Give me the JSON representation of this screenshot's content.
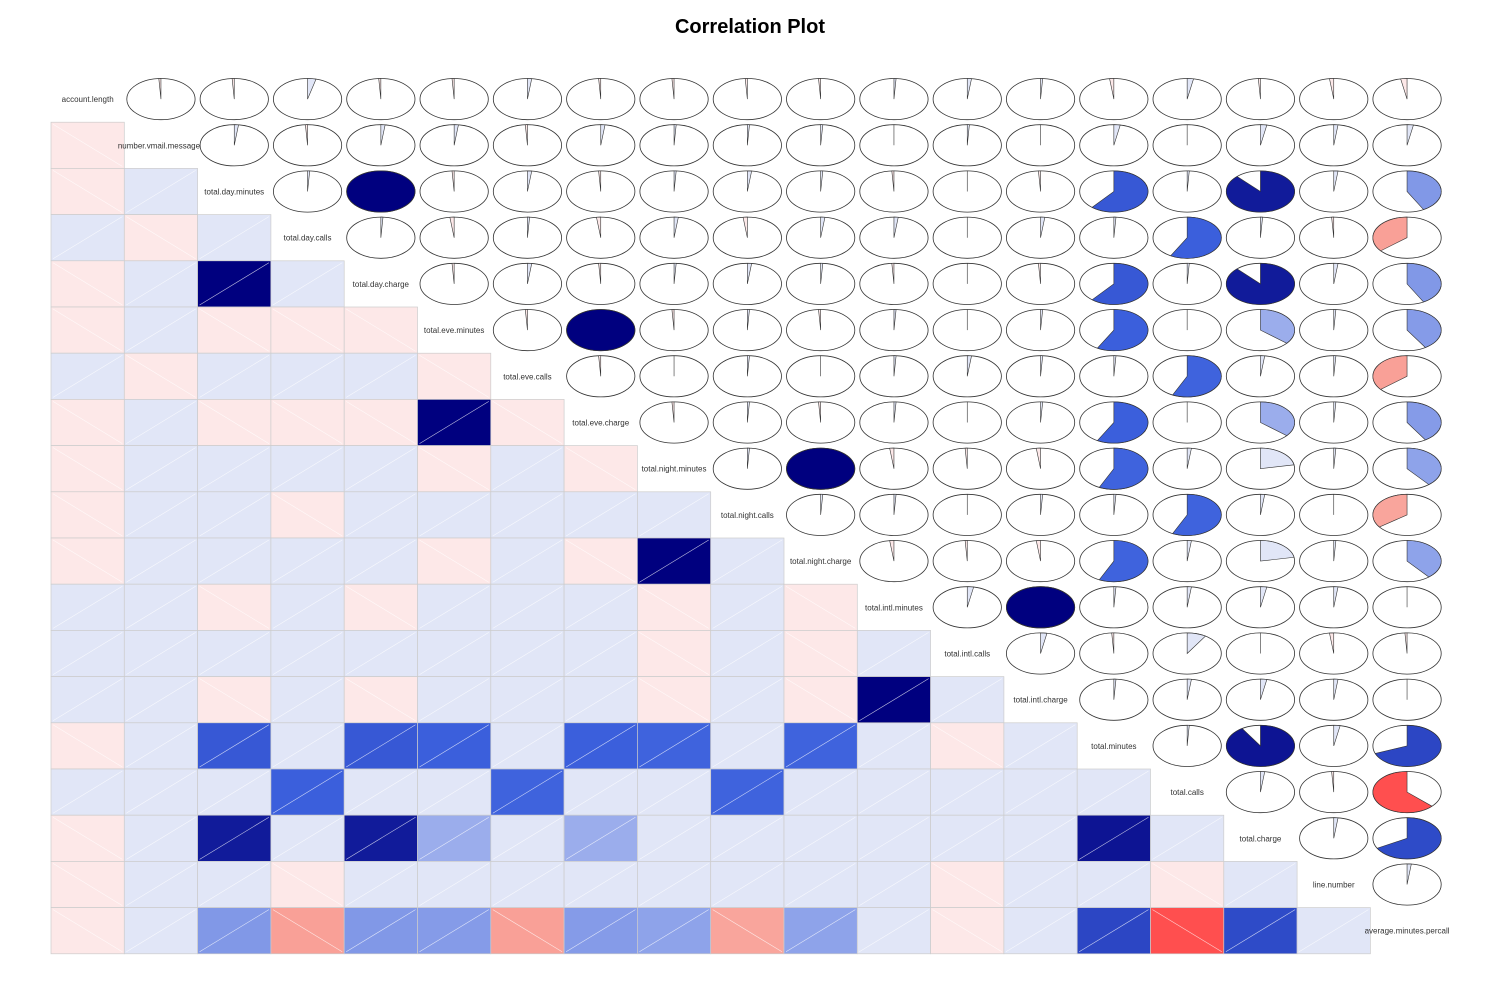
{
  "chart_data": {
    "type": "heatmap",
    "title": "Correlation Plot",
    "lower_panel": "shade",
    "upper_panel": "pie",
    "variables": [
      "account.length",
      "number.vmail.messages",
      "total.day.minutes",
      "total.day.calls",
      "total.day.charge",
      "total.eve.minutes",
      "total.eve.calls",
      "total.eve.charge",
      "total.night.minutes",
      "total.night.calls",
      "total.night.charge",
      "total.intl.minutes",
      "total.intl.calls",
      "total.intl.charge",
      "total.minutes",
      "total.calls",
      "total.charge",
      "line.number",
      "average.minutes.percall"
    ],
    "matrix": [
      [
        1.0,
        -0.01,
        -0.01,
        0.04,
        -0.01,
        -0.01,
        0.02,
        -0.01,
        -0.01,
        -0.01,
        -0.01,
        0.01,
        0.02,
        0.01,
        -0.02,
        0.03,
        -0.01,
        -0.02,
        -0.03
      ],
      [
        -0.01,
        1.0,
        0.02,
        -0.01,
        0.02,
        0.02,
        -0.01,
        0.02,
        0.01,
        0.01,
        0.01,
        0.0,
        0.01,
        0.0,
        0.03,
        0.0,
        0.03,
        0.02,
        0.03
      ],
      [
        -0.01,
        0.02,
        1.0,
        0.01,
        1.0,
        -0.01,
        0.02,
        -0.01,
        0.01,
        0.02,
        0.01,
        -0.01,
        0.0,
        -0.01,
        0.61,
        0.01,
        0.88,
        0.02,
        0.42
      ],
      [
        0.04,
        -0.01,
        0.01,
        1.0,
        0.01,
        -0.02,
        0.01,
        -0.02,
        0.02,
        -0.02,
        0.02,
        0.02,
        0.0,
        0.02,
        0.01,
        0.58,
        0.01,
        -0.01,
        -0.36
      ],
      [
        -0.01,
        0.02,
        1.0,
        0.01,
        1.0,
        -0.01,
        0.02,
        -0.01,
        0.01,
        0.02,
        0.01,
        -0.01,
        0.0,
        -0.01,
        0.61,
        0.01,
        0.88,
        0.02,
        0.42
      ],
      [
        -0.01,
        0.02,
        -0.01,
        -0.02,
        -0.01,
        1.0,
        -0.01,
        1.0,
        -0.01,
        0.01,
        -0.01,
        0.01,
        0.0,
        0.01,
        0.58,
        0.0,
        0.36,
        0.01,
        0.41
      ],
      [
        0.02,
        -0.01,
        0.02,
        0.01,
        0.02,
        -0.01,
        1.0,
        -0.01,
        0.0,
        0.01,
        0.0,
        0.01,
        0.02,
        0.01,
        0.01,
        0.57,
        0.02,
        0.01,
        -0.36
      ],
      [
        -0.01,
        0.02,
        -0.01,
        -0.02,
        -0.01,
        1.0,
        -0.01,
        1.0,
        -0.01,
        0.01,
        -0.01,
        0.01,
        0.0,
        0.01,
        0.58,
        0.0,
        0.36,
        0.01,
        0.41
      ],
      [
        -0.01,
        0.01,
        0.01,
        0.02,
        0.01,
        -0.01,
        0.0,
        -0.01,
        1.0,
        0.01,
        1.0,
        -0.02,
        -0.01,
        -0.02,
        0.57,
        0.02,
        0.22,
        0.01,
        0.39
      ],
      [
        -0.01,
        0.01,
        0.02,
        -0.02,
        0.02,
        0.01,
        0.01,
        0.01,
        0.01,
        1.0,
        0.01,
        0.01,
        0.0,
        0.01,
        0.01,
        0.57,
        0.02,
        0.0,
        -0.35
      ],
      [
        -0.01,
        0.01,
        0.01,
        0.02,
        0.01,
        -0.01,
        0.0,
        -0.01,
        1.0,
        0.01,
        1.0,
        -0.02,
        -0.01,
        -0.02,
        0.57,
        0.02,
        0.22,
        0.01,
        0.39
      ],
      [
        0.01,
        0.0,
        -0.01,
        0.02,
        -0.01,
        0.01,
        0.01,
        0.01,
        -0.02,
        0.01,
        -0.02,
        1.0,
        0.03,
        1.0,
        0.01,
        0.02,
        0.03,
        0.02,
        0.0
      ],
      [
        0.02,
        0.01,
        0.0,
        0.0,
        0.0,
        0.0,
        0.02,
        0.0,
        -0.01,
        0.0,
        -0.01,
        0.03,
        1.0,
        0.03,
        -0.01,
        0.09,
        0.0,
        -0.02,
        -0.01
      ],
      [
        0.01,
        0.0,
        -0.01,
        0.02,
        -0.01,
        0.01,
        0.01,
        0.01,
        -0.02,
        0.01,
        -0.02,
        1.0,
        0.03,
        1.0,
        0.01,
        0.02,
        0.03,
        0.02,
        0.0
      ],
      [
        -0.02,
        0.03,
        0.61,
        0.01,
        0.61,
        0.58,
        0.01,
        0.58,
        0.57,
        0.01,
        0.57,
        0.01,
        -0.01,
        0.01,
        1.0,
        0.01,
        0.91,
        0.03,
        0.69
      ],
      [
        0.03,
        0.0,
        0.01,
        0.58,
        0.01,
        0.0,
        0.57,
        0.0,
        0.02,
        0.57,
        0.02,
        0.02,
        0.09,
        0.02,
        0.01,
        1.0,
        0.02,
        -0.01,
        -0.63
      ],
      [
        -0.01,
        0.03,
        0.88,
        0.01,
        0.88,
        0.36,
        0.02,
        0.36,
        0.22,
        0.02,
        0.22,
        0.03,
        0.0,
        0.03,
        0.91,
        0.02,
        1.0,
        0.02,
        0.67
      ],
      [
        -0.02,
        0.02,
        0.02,
        -0.01,
        0.02,
        0.01,
        0.01,
        0.01,
        0.01,
        0.0,
        0.01,
        0.02,
        -0.02,
        0.02,
        0.03,
        -0.01,
        0.02,
        1.0,
        0.02
      ],
      [
        -0.03,
        0.03,
        0.42,
        -0.36,
        0.42,
        0.41,
        -0.36,
        0.41,
        0.39,
        -0.35,
        0.39,
        0.0,
        -0.01,
        0.0,
        0.69,
        -0.63,
        0.67,
        0.02,
        1.0
      ]
    ]
  },
  "colors": {
    "strong_positive": "#00007F",
    "medium_positive": "#3B5FDC",
    "weak_positive": "#E1E6F7",
    "weak_negative": "#FDE8E8",
    "medium_negative": "#F9A097",
    "strong_negative": "#FF4F4F",
    "grid": "#CCCCCC",
    "outline": "#333333"
  }
}
